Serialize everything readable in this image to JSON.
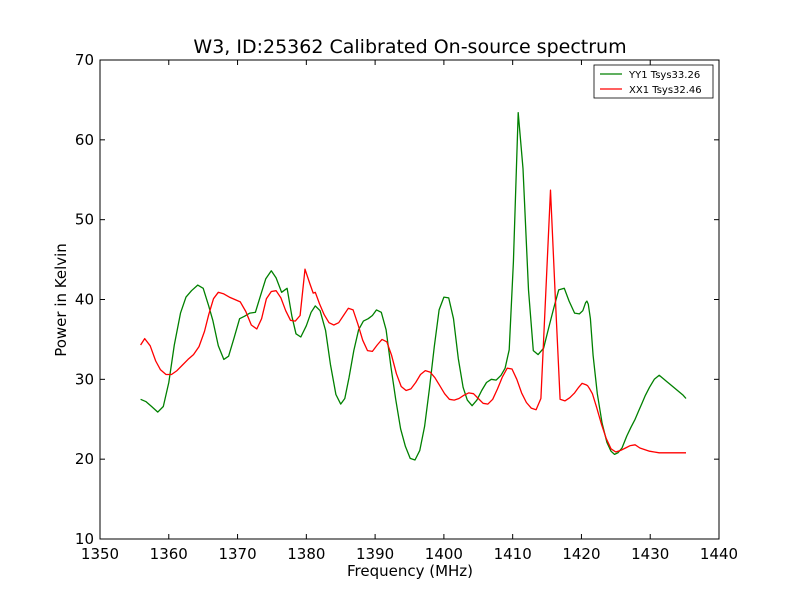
{
  "chart_data": {
    "type": "line",
    "title": "W3, ID:25362 Calibrated On-source spectrum",
    "xlabel": "Frequency (MHz)",
    "ylabel": "Power in Kelvin",
    "xlim": [
      1350,
      1440
    ],
    "ylim": [
      10,
      70
    ],
    "xticks": [
      1350,
      1360,
      1370,
      1380,
      1390,
      1400,
      1410,
      1420,
      1430,
      1440
    ],
    "yticks": [
      10,
      20,
      30,
      40,
      50,
      60,
      70
    ],
    "xtick_labels": [
      "1350",
      "1360",
      "1370",
      "1380",
      "1390",
      "1400",
      "1410",
      "1420",
      "1430",
      "1440"
    ],
    "ytick_labels": [
      "10",
      "20",
      "30",
      "40",
      "50",
      "60",
      "70"
    ],
    "grid": false,
    "legend_position": "top-right",
    "series": [
      {
        "name": "YY1 Tsys33.26",
        "color": "#008000",
        "x": [
          1355.9,
          1356.7,
          1357.5,
          1358.4,
          1359.2,
          1360.0,
          1360.8,
          1361.7,
          1362.5,
          1363.3,
          1364.2,
          1365.0,
          1365.8,
          1366.4,
          1367.2,
          1368.0,
          1368.7,
          1369.5,
          1370.3,
          1371.0,
          1371.8,
          1372.6,
          1373.3,
          1374.1,
          1374.9,
          1375.6,
          1376.4,
          1377.2,
          1377.9,
          1378.5,
          1379.2,
          1380.0,
          1380.7,
          1381.3,
          1382.0,
          1382.8,
          1383.5,
          1384.3,
          1385.0,
          1385.6,
          1386.2,
          1386.9,
          1387.6,
          1388.3,
          1389.0,
          1389.6,
          1390.2,
          1390.9,
          1391.6,
          1392.3,
          1393.0,
          1393.7,
          1394.4,
          1395.1,
          1395.8,
          1396.5,
          1397.2,
          1397.9,
          1398.6,
          1399.3,
          1400.0,
          1400.7,
          1401.4,
          1402.1,
          1402.8,
          1403.4,
          1404.1,
          1404.8,
          1405.5,
          1406.2,
          1406.9,
          1407.6,
          1408.3,
          1408.9,
          1409.5,
          1410.1,
          1410.8,
          1411.5,
          1412.3,
          1413.0,
          1413.7,
          1414.5,
          1415.2,
          1416.0,
          1416.7,
          1417.5,
          1418.2,
          1419.0,
          1419.7,
          1420.2,
          1420.6,
          1420.8,
          1421.0,
          1421.3,
          1421.7,
          1422.3,
          1423.0,
          1423.7,
          1424.3,
          1424.8,
          1425.3,
          1425.9,
          1426.6,
          1427.2,
          1427.8,
          1428.3,
          1428.8,
          1429.3,
          1429.9,
          1430.6,
          1431.3,
          1432.0,
          1432.7,
          1433.4,
          1434.1,
          1434.8,
          1435.2
        ],
        "y": [
          27.5,
          27.2,
          26.6,
          25.9,
          26.6,
          29.6,
          34.3,
          38.3,
          40.3,
          41.1,
          41.8,
          41.4,
          39.2,
          37.4,
          34.2,
          32.5,
          32.9,
          35.2,
          37.6,
          37.9,
          38.3,
          38.4,
          40.4,
          42.6,
          43.6,
          42.7,
          40.9,
          41.4,
          37.9,
          35.7,
          35.3,
          36.7,
          38.4,
          39.2,
          38.6,
          36.1,
          31.9,
          28.1,
          26.9,
          27.6,
          30.2,
          33.6,
          36.2,
          37.3,
          37.6,
          38.0,
          38.7,
          38.4,
          36.2,
          31.6,
          27.5,
          23.8,
          21.6,
          20.1,
          19.9,
          21.1,
          24.1,
          28.8,
          34.1,
          38.7,
          40.3,
          40.2,
          37.6,
          32.6,
          29.0,
          27.4,
          26.7,
          27.4,
          28.6,
          29.6,
          30.0,
          29.9,
          30.5,
          31.4,
          33.7,
          44.7,
          63.4,
          56.4,
          41.2,
          33.6,
          33.1,
          33.9,
          36.3,
          39.0,
          41.2,
          41.4,
          39.8,
          38.3,
          38.2,
          38.6,
          39.6,
          39.8,
          39.4,
          37.6,
          33.0,
          28.2,
          24.5,
          22.1,
          21.0,
          20.6,
          20.8,
          21.4,
          22.9,
          24.0,
          25.0,
          26.0,
          27.0,
          28.0,
          29.0,
          30.0,
          30.5,
          30.0,
          29.5,
          29.0,
          28.5,
          28.0,
          27.6
        ],
        "note_skip": true
      },
      {
        "name": "XX1 Tsys32.46",
        "color": "#ff0000",
        "x": [
          1355.9,
          1356.5,
          1357.3,
          1358.1,
          1358.8,
          1359.6,
          1360.4,
          1361.2,
          1362.0,
          1362.8,
          1363.6,
          1364.4,
          1365.2,
          1365.8,
          1366.5,
          1367.2,
          1368.0,
          1368.8,
          1369.6,
          1370.4,
          1371.2,
          1372.0,
          1372.8,
          1373.5,
          1374.2,
          1374.9,
          1375.6,
          1376.3,
          1377.0,
          1377.7,
          1378.4,
          1379.1,
          1379.8,
          1380.5,
          1381.0,
          1381.3,
          1381.9,
          1382.6,
          1383.3,
          1384.0,
          1384.7,
          1385.4,
          1386.1,
          1386.8,
          1387.5,
          1388.2,
          1388.9,
          1389.6,
          1390.3,
          1391.0,
          1391.7,
          1392.4,
          1393.1,
          1393.8,
          1394.5,
          1395.2,
          1395.9,
          1396.6,
          1397.3,
          1398.0,
          1398.7,
          1399.4,
          1400.1,
          1400.8,
          1401.5,
          1402.2,
          1402.9,
          1403.6,
          1404.3,
          1405.0,
          1405.7,
          1406.4,
          1407.1,
          1407.8,
          1408.5,
          1409.2,
          1409.9,
          1410.6,
          1411.3,
          1412.0,
          1412.7,
          1413.4,
          1414.1,
          1414.8,
          1415.5,
          1416.2,
          1416.9,
          1417.6,
          1418.3,
          1419.0,
          1419.6,
          1420.1,
          1420.4,
          1420.7,
          1420.9,
          1421.2,
          1421.6,
          1422.2,
          1422.9,
          1423.6,
          1424.3,
          1425.0,
          1425.7,
          1426.4,
          1427.1,
          1427.8,
          1428.5,
          1429.2,
          1429.9,
          1430.6,
          1431.3,
          1432.0,
          1432.7,
          1433.4,
          1434.1,
          1434.8,
          1435.2
        ],
        "y": [
          34.3,
          35.1,
          34.2,
          32.3,
          31.2,
          30.6,
          30.6,
          31.1,
          31.8,
          32.5,
          33.1,
          34.1,
          36.0,
          38.1,
          40.1,
          40.9,
          40.7,
          40.3,
          40.0,
          39.7,
          38.5,
          36.8,
          36.3,
          37.6,
          40.1,
          41.0,
          41.1,
          40.2,
          38.6,
          37.4,
          37.3,
          38.0,
          43.8,
          42.0,
          40.8,
          40.9,
          39.5,
          38.1,
          37.1,
          36.8,
          37.1,
          38.0,
          38.9,
          38.7,
          36.9,
          34.9,
          33.6,
          33.5,
          34.3,
          35.0,
          34.7,
          33.0,
          30.7,
          29.1,
          28.6,
          28.8,
          29.6,
          30.6,
          31.1,
          30.9,
          30.2,
          29.2,
          28.2,
          27.5,
          27.4,
          27.6,
          28.0,
          28.3,
          28.2,
          27.6,
          27.0,
          26.9,
          27.5,
          28.8,
          30.3,
          31.4,
          31.3,
          30.0,
          28.3,
          27.1,
          26.4,
          26.2,
          27.6,
          40.6,
          53.7,
          40.3,
          27.5,
          27.3,
          27.7,
          28.3,
          29.0,
          29.5,
          29.4,
          29.3,
          29.2,
          28.8,
          28.2,
          26.5,
          24.4,
          22.6,
          21.3,
          20.9,
          21.1,
          21.4,
          21.7,
          21.8,
          21.4,
          21.2,
          21.0,
          20.9,
          20.8,
          20.8,
          20.8,
          20.8,
          20.8,
          20.8,
          20.8
        ]
      }
    ]
  }
}
